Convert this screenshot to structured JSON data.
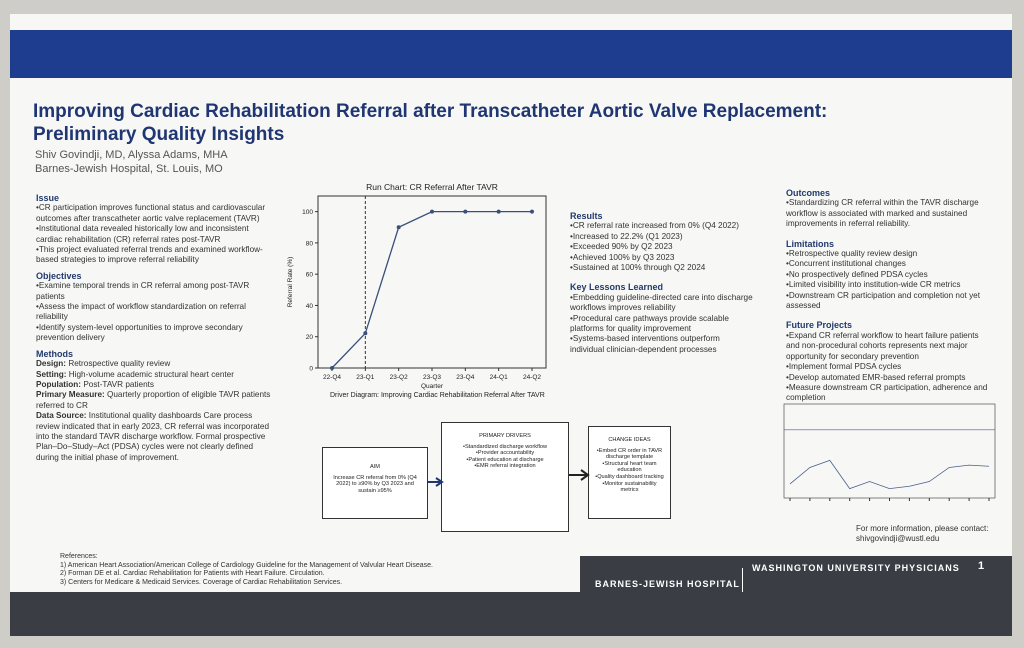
{
  "header": {
    "title": "Improving Cardiac Rehabilitation Referral after Transcatheter Aortic Valve Replacement: Preliminary Quality Insights",
    "authors": "Shiv Govindji, MD, Alyssa Adams, MHA",
    "affiliation": "Barnes-Jewish Hospital, St. Louis, MO"
  },
  "issue": {
    "heading": "Issue",
    "items": [
      "CR participation improves functional status and cardiovascular outcomes after transcatheter aortic valve replacement (TAVR)",
      "Institutional data revealed historically low and inconsistent cardiac rehabilitation (CR) referral rates post-TAVR",
      "This project evaluated referral trends and examined workflow-based strategies to improve referral reliability"
    ]
  },
  "objectives": {
    "heading": "Objectives",
    "items": [
      "Examine temporal trends in CR referral among post-TAVR patients",
      "Assess the impact of workflow standardization on referral reliability",
      "Identify system-level opportunities to improve secondary prevention delivery"
    ]
  },
  "methods": {
    "heading": "Methods",
    "items": [
      {
        "label": "Design:",
        "text": "Retrospective quality review"
      },
      {
        "label": "Setting:",
        "text": "High-volume academic structural heart center"
      },
      {
        "label": "Population:",
        "text": "Post-TAVR patients"
      },
      {
        "label": "Primary Measure:",
        "text": "Quarterly proportion of eligible TAVR patients referred to CR"
      },
      {
        "label": "Data Source:",
        "text": "Institutional quality dashboards Care process review indicated that in early 2023, CR referral was incorporated into the standard TAVR discharge workflow. Formal prospective Plan–Do–Study–Act (PDSA) cycles were not clearly defined during the initial phase of improvement."
      }
    ]
  },
  "results": {
    "heading": "Results",
    "items": [
      "CR referral rate increased from 0% (Q4 2022)",
      "Increased to 22.2% (Q1 2023)",
      "Exceeded 90% by Q2 2023",
      "Achieved 100% by Q3 2023",
      "Sustained at 100% through Q2 2024"
    ]
  },
  "lessons": {
    "heading": "Key Lessons Learned",
    "items": [
      "Embedding guideline-directed care into discharge workflows improves reliability",
      "Procedural care pathways provide scalable platforms for quality improvement",
      "Systems-based interventions outperform individual clinician-dependent processes"
    ]
  },
  "outcomes": {
    "heading": "Outcomes",
    "items": [
      "Standardizing CR referral within the TAVR discharge workflow is associated with marked and sustained improvements in referral reliability."
    ]
  },
  "limitations": {
    "heading": "Limitations",
    "items": [
      "Retrospective quality review design",
      "Concurrent institutional changes",
      "No prospectively defined PDSA cycles",
      "Limited visibility into institution-wide CR metrics",
      "Downstream CR participation and completion not yet assessed"
    ]
  },
  "future": {
    "heading": "Future Projects",
    "items": [
      "Expand CR referral workflow to heart failure patients and non-procedural cohorts represents next major opportunity for secondary prevention",
      "Implement formal PDSA cycles",
      "Develop automated EMR-based referral prompts",
      "Measure downstream CR participation, adherence and completion"
    ]
  },
  "diagram": {
    "title": "Driver Diagram: Improving Cardiac Rehabilitation Referral After TAVR",
    "nodes": [
      {
        "label": "AIM",
        "items": [
          "Increase CR referral from 0% (Q4 2022) to ≥90% by Q3 2023 and sustain ≥95%"
        ]
      },
      {
        "label": "PRIMARY DRIVERS",
        "items": [
          "Standardized discharge workflow",
          "Provider accountability",
          "Patient education at discharge",
          "EMR referral integration"
        ]
      },
      {
        "label": "CHANGE IDEAS",
        "items": [
          "Embed CR order in TAVR discharge template",
          "Structural heart team education",
          "Quality dashboard tracking",
          "Monitor sustainability metrics"
        ]
      }
    ]
  },
  "contact": {
    "text": "For more information, please contact:",
    "email": "shivgovindji@wustl.edu"
  },
  "references": {
    "heading": "References:",
    "items": [
      "1) American Heart Association/American College of Cardiology Guideline for the Management of Valvular Heart Disease.",
      "2) Forman DE et al. Cardiac Rehabilitation for Patients with Heart Failure. Circulation.",
      "3) Centers for Medicare & Medicaid Services. Coverage of Cardiac Rehabilitation Services."
    ]
  },
  "footer": {
    "left": "BARNES-JEWISH HOSPITAL",
    "right": "WASHINGTON UNIVERSITY PHYSICIANS",
    "page": "1"
  },
  "chart_data": [
    {
      "type": "line",
      "title": "Run Chart: CR Referral After TAVR",
      "x_label": "Quarter",
      "y_label": "Referral Rate (%)",
      "categories": [
        "22-Q4",
        "23-Q1",
        "23-Q2",
        "23-Q3",
        "23-Q4",
        "24-Q1",
        "24-Q2"
      ],
      "values": [
        0,
        22.2,
        90,
        100,
        100,
        100,
        100
      ],
      "color": "#3a4f7a",
      "ylim": [
        0,
        110
      ],
      "yticks": [
        0,
        20,
        40,
        60,
        80,
        100
      ]
    },
    {
      "type": "line",
      "categories": [
        null,
        null,
        null,
        null,
        null,
        null,
        null,
        null,
        null,
        null,
        null
      ],
      "values": [
        6,
        13,
        16,
        4,
        7,
        4,
        5,
        7,
        13,
        14,
        13.5
      ],
      "color": "#4a5f8a",
      "ylim": [
        0,
        40
      ],
      "reference_line": 29
    }
  ]
}
